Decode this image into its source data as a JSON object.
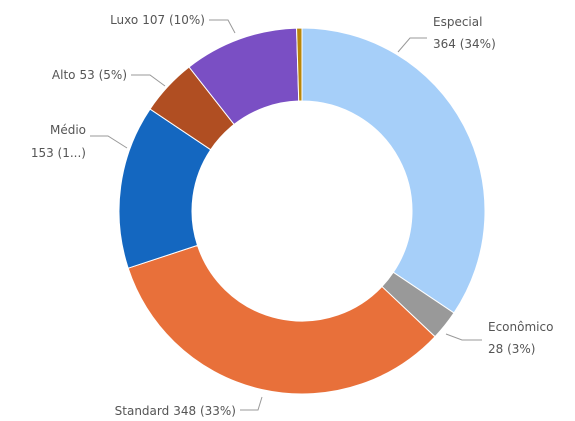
{
  "chart_data": {
    "type": "donut",
    "categories": [
      "Especial",
      "Econômico",
      "Standard",
      "Médio",
      "Alto",
      "Luxo",
      null
    ],
    "values": [
      364,
      28,
      348,
      153,
      53,
      107,
      5
    ],
    "value_labels": [
      "364 (34%)",
      "28 (3%)",
      "348 (33%)",
      "153 (1...)",
      "53 (5%)",
      "107 (10%)",
      null
    ],
    "colors": [
      "#a6cff9",
      "#999999",
      "#e8703a",
      "#1467c0",
      "#b04e22",
      "#7a4fc4",
      "#b8860b"
    ]
  }
}
